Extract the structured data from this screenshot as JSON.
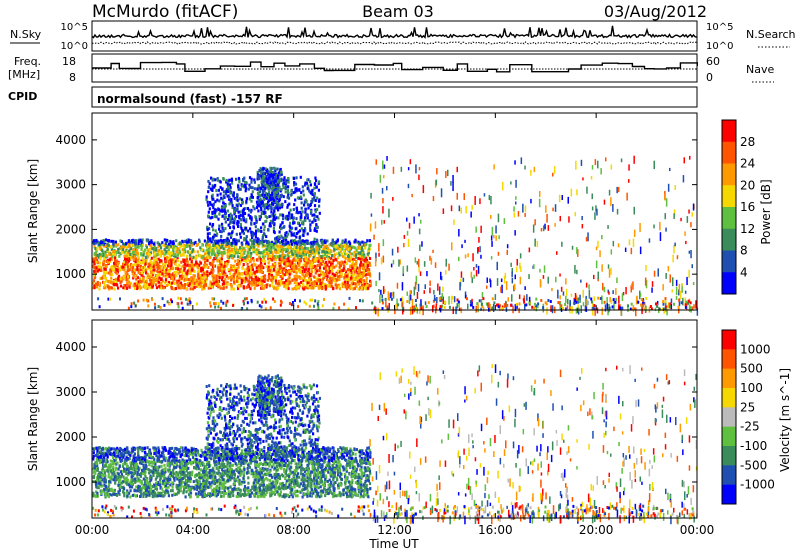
{
  "header": {
    "station": "McMurdo (fitACF)",
    "beam": "Beam 03",
    "date": "03/Aug/2012"
  },
  "top_panel": {
    "nsky_label": "N.Sky",
    "nsky_ticks": [
      "10^5",
      "10^0"
    ],
    "nsearch_label": "N.Search",
    "nsearch_ticks": [
      "10^5",
      "10^0"
    ],
    "freq_label": "Freq.",
    "freq_unit": "[MHz]",
    "freq_ticks": [
      "18",
      "8"
    ],
    "nave_label": "Nave",
    "nave_ticks": [
      "60",
      "0"
    ],
    "cpid_label": "CPID",
    "cpid_text": "normalsound (fast) -157 RF"
  },
  "time_axis": {
    "ticks": [
      "00:00",
      "04:00",
      "08:00",
      "12:00",
      "16:00",
      "20:00",
      "00:00"
    ],
    "label": "Time UT"
  },
  "colors": {
    "power_scale": [
      "#0000ff",
      "#1f4fb0",
      "#3a8c5a",
      "#5fbf3f",
      "#f5d800",
      "#ff9900",
      "#ff5500",
      "#ff0000"
    ],
    "velocity_scale": [
      "#ff0000",
      "#ff5500",
      "#ff9900",
      "#f5d800",
      "#bbbbbb",
      "#5fbf3f",
      "#3a8c5a",
      "#1f4fb0",
      "#0000ff"
    ]
  },
  "chart_data": [
    {
      "type": "heatmap",
      "title": "",
      "ylabel": "Slant Range [km]",
      "xlabel": "",
      "y_ticks": [
        "1000",
        "2000",
        "3000",
        "4000"
      ],
      "ylim": [
        200,
        4600
      ],
      "xlim": [
        0,
        24
      ],
      "colorbar_label": "Power [dB]",
      "colorbar_ticks": [
        "4",
        "8",
        "12",
        "16",
        "20",
        "24",
        "28"
      ],
      "colorbar_range": [
        0,
        32
      ]
    },
    {
      "type": "heatmap",
      "title": "",
      "ylabel": "Slant Range [km]",
      "xlabel": "Time UT",
      "y_ticks": [
        "1000",
        "2000",
        "3000",
        "4000"
      ],
      "ylim": [
        200,
        4600
      ],
      "xlim": [
        0,
        24
      ],
      "colorbar_label": "Velocity [m s^-1]",
      "colorbar_ticks": [
        "1000",
        "500",
        "100",
        "25",
        "-25",
        "-100",
        "-500",
        "-1000"
      ]
    }
  ]
}
